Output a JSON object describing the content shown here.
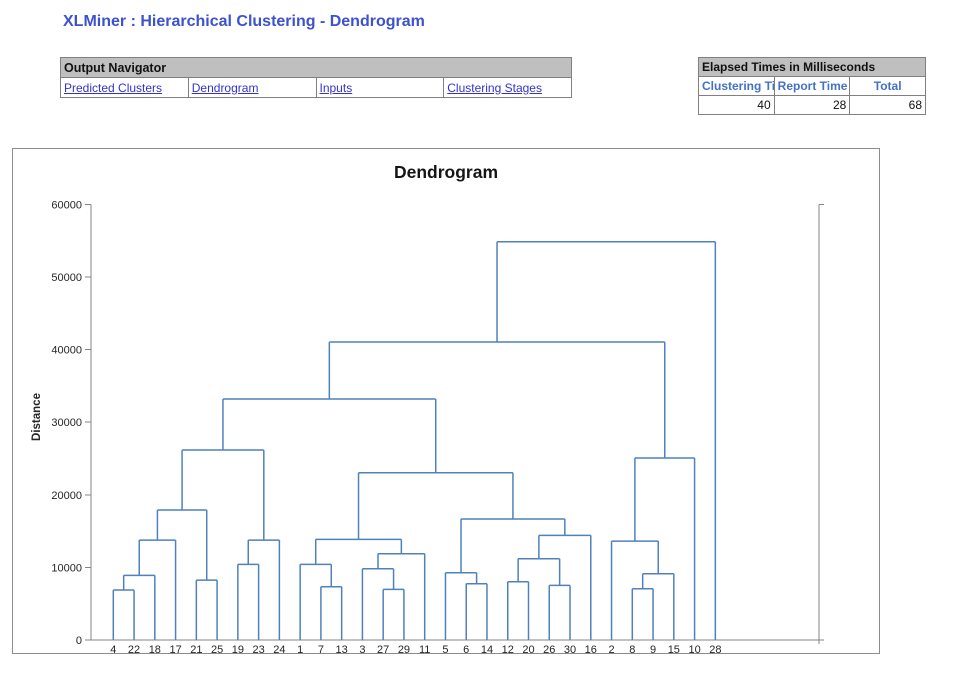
{
  "header": {
    "title": "XLMiner : Hierarchical Clustering - Dendrogram"
  },
  "navigator": {
    "title": "Output Navigator",
    "links": [
      "Predicted Clusters",
      "Dendrogram",
      "Inputs",
      "Clustering Stages"
    ]
  },
  "elapsed": {
    "title": "Elapsed Times in Milliseconds",
    "columns": [
      "Clustering Time",
      "Report Time",
      "Total"
    ],
    "values": [
      "40",
      "28",
      "68"
    ]
  },
  "chart_data": {
    "type": "dendrogram",
    "title": "Dendrogram",
    "ylabel": "Distance",
    "xlabel": "",
    "ylim": [
      0,
      60000
    ],
    "yticks": [
      0,
      10000,
      20000,
      30000,
      40000,
      50000,
      60000
    ],
    "grid": false,
    "legend": false,
    "leaves": [
      "4",
      "22",
      "18",
      "17",
      "21",
      "25",
      "19",
      "23",
      "24",
      "1",
      "7",
      "13",
      "3",
      "27",
      "29",
      "11",
      "5",
      "6",
      "14",
      "12",
      "20",
      "26",
      "30",
      "16",
      "2",
      "8",
      "9",
      "15",
      "10",
      "28"
    ],
    "merges": [
      [
        "4",
        "22",
        6880
      ],
      [
        "27",
        "29",
        6970
      ],
      [
        "8",
        "9",
        7060
      ],
      [
        "7",
        "13",
        7330
      ],
      [
        "26",
        "30",
        7520
      ],
      [
        "6",
        "14",
        7750
      ],
      [
        "12",
        "20",
        8020
      ],
      [
        "21",
        "25",
        8250
      ],
      [
        0,
        "18",
        8900
      ],
      [
        2,
        "15",
        9120
      ],
      [
        "5",
        5,
        9260
      ],
      [
        "3",
        1,
        9810
      ],
      [
        "19",
        "23",
        10420
      ],
      [
        "1",
        3,
        10420
      ],
      [
        6,
        4,
        11190
      ],
      [
        11,
        "11",
        11880
      ],
      [
        8,
        "17",
        13760
      ],
      [
        12,
        "24",
        13760
      ],
      [
        "2",
        9,
        13620
      ],
      [
        13,
        15,
        13860
      ],
      [
        14,
        "16",
        14410
      ],
      [
        10,
        20,
        16660
      ],
      [
        16,
        7,
        17900
      ],
      [
        19,
        21,
        23030
      ],
      [
        18,
        "10",
        25060
      ],
      [
        22,
        17,
        26160
      ],
      [
        25,
        23,
        33180
      ],
      [
        26,
        24,
        41030
      ],
      [
        27,
        "28",
        54840
      ]
    ]
  },
  "colors": {
    "branch_blue": "#4F81BD",
    "axis_gray": "#848484",
    "title_blue": "#3D52CC",
    "link_blue": "#3333CC",
    "table_header_gray": "#BFBFBF",
    "column_header_blue": "#4472C4"
  }
}
